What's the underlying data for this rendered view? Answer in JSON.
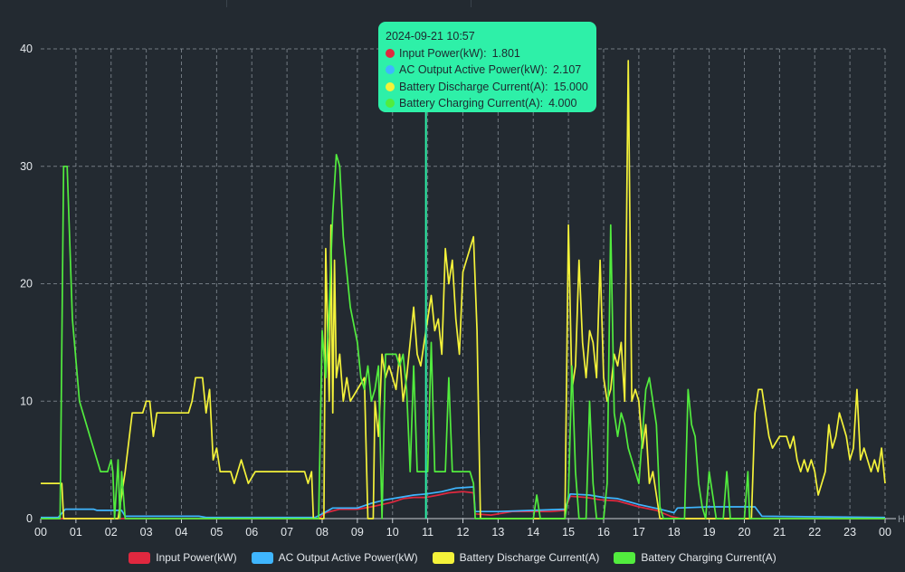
{
  "chart_data": {
    "type": "line",
    "title": "",
    "xlabel": "",
    "ylabel": "",
    "x_tick_labels": [
      "00",
      "01",
      "02",
      "03",
      "04",
      "05",
      "06",
      "07",
      "08",
      "09",
      "10",
      "11",
      "12",
      "13",
      "14",
      "15",
      "16",
      "17",
      "18",
      "19",
      "20",
      "21",
      "22",
      "23",
      "00"
    ],
    "x_axis_end_label": "H",
    "xlim": [
      0,
      24
    ],
    "ylim": [
      0,
      40
    ],
    "y_ticks": [
      0,
      10,
      20,
      30,
      40
    ],
    "grid": true,
    "legend_position": "bottom",
    "series": [
      {
        "name": "Input Power(kW)",
        "color": "#e0283f",
        "points": [
          [
            0,
            0
          ],
          [
            7.9,
            0
          ],
          [
            8.1,
            0.5
          ],
          [
            8.5,
            0.8
          ],
          [
            9,
            0.8
          ],
          [
            9.4,
            1.0
          ],
          [
            9.7,
            1.2
          ],
          [
            10.0,
            1.4
          ],
          [
            10.3,
            1.7
          ],
          [
            10.6,
            1.8
          ],
          [
            10.95,
            1.8
          ],
          [
            11.3,
            2.0
          ],
          [
            11.6,
            2.2
          ],
          [
            12.0,
            2.3
          ],
          [
            12.3,
            2.2
          ],
          [
            12.35,
            0.4
          ],
          [
            12.8,
            0.3
          ],
          [
            13.4,
            0.6
          ],
          [
            14.0,
            0.6
          ],
          [
            14.5,
            0.6
          ],
          [
            14.9,
            0.7
          ],
          [
            15.05,
            1.9
          ],
          [
            15.5,
            1.8
          ],
          [
            15.9,
            1.6
          ],
          [
            16.4,
            1.5
          ],
          [
            17.0,
            1.0
          ],
          [
            17.5,
            0.7
          ],
          [
            17.9,
            0.2
          ],
          [
            18.2,
            0
          ],
          [
            24,
            0
          ]
        ]
      },
      {
        "name": "AC Output Active Power(kW)",
        "color": "#3fb6ff",
        "points": [
          [
            0,
            0.1
          ],
          [
            0.5,
            0.1
          ],
          [
            0.7,
            0.8
          ],
          [
            1.5,
            0.8
          ],
          [
            1.6,
            0.7
          ],
          [
            2.3,
            0.7
          ],
          [
            2.4,
            0.2
          ],
          [
            3.5,
            0.2
          ],
          [
            4.5,
            0.2
          ],
          [
            4.7,
            0.1
          ],
          [
            7.8,
            0.1
          ],
          [
            8.0,
            0.4
          ],
          [
            8.3,
            0.9
          ],
          [
            9.0,
            0.9
          ],
          [
            9.4,
            1.3
          ],
          [
            9.8,
            1.6
          ],
          [
            10.2,
            1.8
          ],
          [
            10.6,
            2.0
          ],
          [
            10.95,
            2.1
          ],
          [
            11.4,
            2.3
          ],
          [
            11.8,
            2.6
          ],
          [
            12.3,
            2.7
          ],
          [
            12.35,
            0.6
          ],
          [
            13.0,
            0.6
          ],
          [
            14.0,
            0.7
          ],
          [
            14.9,
            0.8
          ],
          [
            15.05,
            2.1
          ],
          [
            15.6,
            2.0
          ],
          [
            16.0,
            1.8
          ],
          [
            16.4,
            1.7
          ],
          [
            17.0,
            1.2
          ],
          [
            17.6,
            0.8
          ],
          [
            18.0,
            0.5
          ],
          [
            18.1,
            0.9
          ],
          [
            19.0,
            1.0
          ],
          [
            20.3,
            1.0
          ],
          [
            20.5,
            0.2
          ],
          [
            24,
            0.1
          ]
        ]
      },
      {
        "name": "Battery Discharge Current(A)",
        "color": "#f4f23a",
        "points": [
          [
            0,
            3
          ],
          [
            0.6,
            3
          ],
          [
            0.65,
            0
          ],
          [
            2.2,
            0
          ],
          [
            2.4,
            4
          ],
          [
            2.6,
            9
          ],
          [
            2.9,
            9
          ],
          [
            3.0,
            10
          ],
          [
            3.1,
            10
          ],
          [
            3.2,
            7
          ],
          [
            3.3,
            9
          ],
          [
            3.7,
            9
          ],
          [
            4.0,
            9
          ],
          [
            4.2,
            9
          ],
          [
            4.3,
            10
          ],
          [
            4.4,
            12
          ],
          [
            4.6,
            12
          ],
          [
            4.7,
            9
          ],
          [
            4.8,
            11
          ],
          [
            4.9,
            5
          ],
          [
            5.0,
            6
          ],
          [
            5.1,
            4
          ],
          [
            5.4,
            4
          ],
          [
            5.5,
            3
          ],
          [
            5.6,
            4
          ],
          [
            5.7,
            5
          ],
          [
            5.8,
            4
          ],
          [
            5.9,
            3
          ],
          [
            6.1,
            4
          ],
          [
            7.0,
            4
          ],
          [
            7.5,
            4
          ],
          [
            7.6,
            3
          ],
          [
            7.7,
            4
          ],
          [
            7.75,
            0
          ],
          [
            8.05,
            0
          ],
          [
            8.1,
            23
          ],
          [
            8.2,
            10
          ],
          [
            8.25,
            25
          ],
          [
            8.3,
            9
          ],
          [
            8.35,
            22
          ],
          [
            8.4,
            12
          ],
          [
            8.5,
            14
          ],
          [
            8.6,
            10
          ],
          [
            8.7,
            12
          ],
          [
            8.8,
            10
          ],
          [
            9.0,
            11
          ],
          [
            9.2,
            12
          ],
          [
            9.3,
            0
          ],
          [
            9.45,
            0
          ],
          [
            9.5,
            10
          ],
          [
            9.6,
            7
          ],
          [
            9.7,
            14
          ],
          [
            9.8,
            12
          ],
          [
            9.9,
            13
          ],
          [
            10.0,
            12
          ],
          [
            10.1,
            11
          ],
          [
            10.2,
            14
          ],
          [
            10.3,
            10
          ],
          [
            10.4,
            12
          ],
          [
            10.5,
            15
          ],
          [
            10.6,
            18
          ],
          [
            10.7,
            14
          ],
          [
            10.8,
            13
          ],
          [
            10.9,
            15
          ],
          [
            11.0,
            17
          ],
          [
            11.1,
            19
          ],
          [
            11.2,
            16
          ],
          [
            11.3,
            17
          ],
          [
            11.4,
            14
          ],
          [
            11.5,
            23
          ],
          [
            11.6,
            20
          ],
          [
            11.7,
            22
          ],
          [
            11.8,
            17
          ],
          [
            11.9,
            14
          ],
          [
            12.0,
            21
          ],
          [
            12.1,
            22
          ],
          [
            12.3,
            24
          ],
          [
            12.4,
            16
          ],
          [
            12.5,
            0
          ],
          [
            14.9,
            0
          ],
          [
            15.0,
            25
          ],
          [
            15.1,
            11
          ],
          [
            15.2,
            13
          ],
          [
            15.3,
            22
          ],
          [
            15.4,
            15
          ],
          [
            15.5,
            12
          ],
          [
            15.6,
            16
          ],
          [
            15.7,
            15
          ],
          [
            15.8,
            12
          ],
          [
            15.9,
            22
          ],
          [
            16.0,
            12
          ],
          [
            16.1,
            10
          ],
          [
            16.2,
            11
          ],
          [
            16.3,
            14
          ],
          [
            16.4,
            13
          ],
          [
            16.5,
            15
          ],
          [
            16.6,
            10
          ],
          [
            16.7,
            39
          ],
          [
            16.8,
            10
          ],
          [
            16.9,
            11
          ],
          [
            17.0,
            10
          ],
          [
            17.1,
            6
          ],
          [
            17.2,
            8
          ],
          [
            17.3,
            3
          ],
          [
            17.4,
            4
          ],
          [
            17.5,
            2
          ],
          [
            17.6,
            0
          ],
          [
            20.2,
            0
          ],
          [
            20.3,
            9
          ],
          [
            20.4,
            11
          ],
          [
            20.5,
            11
          ],
          [
            20.6,
            9
          ],
          [
            20.7,
            7
          ],
          [
            20.8,
            6
          ],
          [
            21.0,
            7
          ],
          [
            21.2,
            7
          ],
          [
            21.3,
            6
          ],
          [
            21.4,
            7
          ],
          [
            21.5,
            5
          ],
          [
            21.6,
            4
          ],
          [
            21.7,
            5
          ],
          [
            21.8,
            4
          ],
          [
            21.9,
            5
          ],
          [
            22.0,
            4
          ],
          [
            22.1,
            2
          ],
          [
            22.2,
            3
          ],
          [
            22.3,
            4
          ],
          [
            22.4,
            8
          ],
          [
            22.5,
            6
          ],
          [
            22.6,
            7
          ],
          [
            22.7,
            9
          ],
          [
            22.8,
            8
          ],
          [
            22.9,
            7
          ],
          [
            23.0,
            5
          ],
          [
            23.1,
            6
          ],
          [
            23.2,
            11
          ],
          [
            23.3,
            5
          ],
          [
            23.4,
            6
          ],
          [
            23.5,
            5
          ],
          [
            23.6,
            4
          ],
          [
            23.7,
            5
          ],
          [
            23.8,
            4
          ],
          [
            23.9,
            6
          ],
          [
            24.0,
            3
          ]
        ]
      },
      {
        "name": "Battery Charging Current(A)",
        "color": "#52ec3e",
        "points": [
          [
            0,
            0
          ],
          [
            0.55,
            0
          ],
          [
            0.65,
            30
          ],
          [
            0.75,
            30
          ],
          [
            0.9,
            17
          ],
          [
            1.1,
            10
          ],
          [
            1.4,
            7
          ],
          [
            1.6,
            5
          ],
          [
            1.7,
            4
          ],
          [
            1.9,
            4
          ],
          [
            2.0,
            5
          ],
          [
            2.05,
            4
          ],
          [
            2.1,
            0
          ],
          [
            2.2,
            5
          ],
          [
            2.25,
            0
          ],
          [
            2.3,
            4
          ],
          [
            2.4,
            0
          ],
          [
            7.9,
            0
          ],
          [
            8.0,
            16
          ],
          [
            8.1,
            12
          ],
          [
            8.2,
            18
          ],
          [
            8.3,
            26
          ],
          [
            8.4,
            31
          ],
          [
            8.5,
            30
          ],
          [
            8.6,
            24
          ],
          [
            8.8,
            18
          ],
          [
            9.0,
            15
          ],
          [
            9.1,
            12
          ],
          [
            9.2,
            11
          ],
          [
            9.3,
            13
          ],
          [
            9.4,
            10
          ],
          [
            9.5,
            11
          ],
          [
            9.6,
            13
          ],
          [
            9.7,
            0
          ],
          [
            9.8,
            14
          ],
          [
            10.1,
            14
          ],
          [
            10.2,
            13
          ],
          [
            10.3,
            14
          ],
          [
            10.4,
            11
          ],
          [
            10.5,
            4
          ],
          [
            10.6,
            13
          ],
          [
            10.7,
            4
          ],
          [
            10.95,
            4
          ],
          [
            11.0,
            4
          ],
          [
            11.1,
            15
          ],
          [
            11.2,
            4
          ],
          [
            11.5,
            4
          ],
          [
            11.6,
            12
          ],
          [
            11.7,
            4
          ],
          [
            12.2,
            4
          ],
          [
            12.3,
            3
          ],
          [
            12.35,
            0
          ],
          [
            14.0,
            0
          ],
          [
            14.1,
            2
          ],
          [
            14.2,
            0
          ],
          [
            14.9,
            0
          ],
          [
            15.0,
            2
          ],
          [
            15.1,
            13
          ],
          [
            15.2,
            4
          ],
          [
            15.3,
            0
          ],
          [
            15.5,
            0
          ],
          [
            15.6,
            10
          ],
          [
            15.7,
            3
          ],
          [
            15.8,
            0
          ],
          [
            16.0,
            0
          ],
          [
            16.1,
            3
          ],
          [
            16.2,
            25
          ],
          [
            16.3,
            9
          ],
          [
            16.4,
            7
          ],
          [
            16.5,
            9
          ],
          [
            16.6,
            8
          ],
          [
            16.7,
            6
          ],
          [
            16.8,
            5
          ],
          [
            16.9,
            4
          ],
          [
            17.0,
            3
          ],
          [
            17.2,
            11
          ],
          [
            17.3,
            12
          ],
          [
            17.5,
            8
          ],
          [
            17.6,
            1
          ],
          [
            17.7,
            0
          ],
          [
            18.3,
            0
          ],
          [
            18.4,
            11
          ],
          [
            18.5,
            8
          ],
          [
            18.6,
            7
          ],
          [
            18.7,
            3
          ],
          [
            18.8,
            1
          ],
          [
            18.9,
            0
          ],
          [
            19.0,
            4
          ],
          [
            19.1,
            2
          ],
          [
            19.2,
            0
          ],
          [
            19.4,
            0
          ],
          [
            19.5,
            4
          ],
          [
            19.6,
            0
          ],
          [
            20.0,
            0
          ],
          [
            20.1,
            4
          ],
          [
            20.15,
            0
          ],
          [
            24,
            0
          ]
        ]
      }
    ],
    "cursor": {
      "x": 10.95,
      "tooltip_title": "2024-09-21 10:57",
      "rows": [
        {
          "label": "Input Power(kW)",
          "value": "1.801",
          "color": "#e0283f"
        },
        {
          "label": "AC Output Active Power(kW)",
          "value": "2.107",
          "color": "#3fb6ff"
        },
        {
          "label": "Battery Discharge Current(A)",
          "value": "15.000",
          "color": "#f4f23a"
        },
        {
          "label": "Battery Charging Current(A)",
          "value": "4.000",
          "color": "#52ec3e"
        }
      ]
    }
  }
}
